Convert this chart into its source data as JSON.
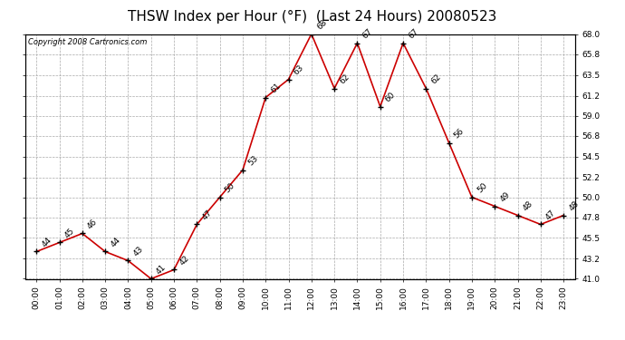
{
  "title": "THSW Index per Hour (°F)  (Last 24 Hours) 20080523",
  "copyright": "Copyright 2008 Cartronics.com",
  "hours": [
    "00:00",
    "01:00",
    "02:00",
    "03:00",
    "04:00",
    "05:00",
    "06:00",
    "07:00",
    "08:00",
    "09:00",
    "10:00",
    "11:00",
    "12:00",
    "13:00",
    "14:00",
    "15:00",
    "16:00",
    "17:00",
    "18:00",
    "19:00",
    "20:00",
    "21:00",
    "22:00",
    "23:00"
  ],
  "values": [
    44,
    45,
    46,
    44,
    43,
    41,
    42,
    47,
    50,
    53,
    61,
    63,
    68,
    62,
    67,
    60,
    67,
    62,
    56,
    50,
    49,
    48,
    47,
    48
  ],
  "ylim": [
    41.0,
    68.0
  ],
  "yticks": [
    41.0,
    43.2,
    45.5,
    47.8,
    50.0,
    52.2,
    54.5,
    56.8,
    59.0,
    61.2,
    63.5,
    65.8,
    68.0
  ],
  "line_color": "#cc0000",
  "marker_color": "#000000",
  "grid_color": "#aaaaaa",
  "bg_color": "#ffffff",
  "title_fontsize": 11,
  "label_fontsize": 6.5,
  "annotation_fontsize": 6.5,
  "copyright_fontsize": 6
}
